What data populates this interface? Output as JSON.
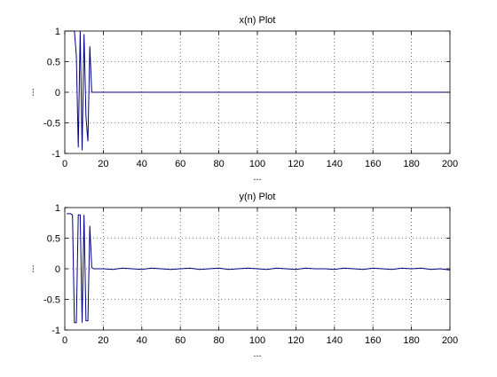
{
  "chart_data": [
    {
      "type": "line",
      "title": "x(n) Plot",
      "xlabel": "...",
      "ylabel": "...",
      "xlim": [
        0,
        200
      ],
      "ylim": [
        -1,
        1
      ],
      "x_ticks": [
        "0",
        "20",
        "40",
        "60",
        "80",
        "100",
        "120",
        "140",
        "160",
        "180",
        "200"
      ],
      "y_ticks": [
        "-1",
        "-0.5",
        "0",
        "0.5",
        "1"
      ],
      "grid": "dotted",
      "line_color": "#000080",
      "series": [
        {
          "x": [
            1,
            2,
            3,
            4,
            5,
            6,
            7,
            8,
            9,
            10,
            11,
            12,
            13,
            14,
            15,
            16,
            20,
            40,
            60,
            80,
            100,
            120,
            140,
            160,
            180,
            200
          ],
          "y": [
            1,
            1,
            1,
            1,
            1,
            0.6,
            -0.9,
            1,
            -0.95,
            0.95,
            -0.4,
            -0.8,
            0.75,
            0,
            0,
            0,
            0,
            0,
            0,
            0,
            0,
            0,
            0,
            0,
            0,
            0
          ]
        }
      ]
    },
    {
      "type": "line",
      "title": "y(n) Plot",
      "xlabel": "...",
      "ylabel": "...",
      "xlim": [
        0,
        200
      ],
      "ylim": [
        -1,
        1
      ],
      "x_ticks": [
        "0",
        "20",
        "40",
        "60",
        "80",
        "100",
        "120",
        "140",
        "160",
        "180",
        "200"
      ],
      "y_ticks": [
        "-1",
        "-0.5",
        "0",
        "0.5",
        "1"
      ],
      "grid": "dotted",
      "line_color": "#000080",
      "series": [
        {
          "x": [
            1,
            2,
            3,
            4,
            5,
            6,
            7,
            8,
            9,
            10,
            11,
            12,
            13,
            14,
            15,
            20,
            25,
            30,
            35,
            40,
            45,
            50,
            55,
            60,
            65,
            70,
            75,
            80,
            85,
            90,
            95,
            100,
            105,
            110,
            115,
            120,
            125,
            130,
            135,
            140,
            145,
            150,
            155,
            160,
            165,
            170,
            175,
            180,
            185,
            190,
            195,
            200
          ],
          "y": [
            0.9,
            0.9,
            0.9,
            0.88,
            -0.88,
            -0.88,
            0.88,
            0.88,
            -0.88,
            0.88,
            -0.85,
            -0.85,
            0.7,
            0.02,
            0.0,
            0.0,
            -0.01,
            0.01,
            0.0,
            -0.01,
            0.01,
            0.0,
            -0.01,
            0.0,
            0.01,
            -0.01,
            0.0,
            0.01,
            -0.01,
            0.0,
            0.01,
            0.0,
            -0.01,
            0.01,
            0.0,
            -0.01,
            0.01,
            0.0,
            0.0,
            -0.01,
            0.01,
            0.0,
            -0.01,
            0.01,
            0.0,
            -0.01,
            0.01,
            0.0,
            0.01,
            -0.01,
            0.0,
            -0.02
          ]
        }
      ]
    }
  ]
}
